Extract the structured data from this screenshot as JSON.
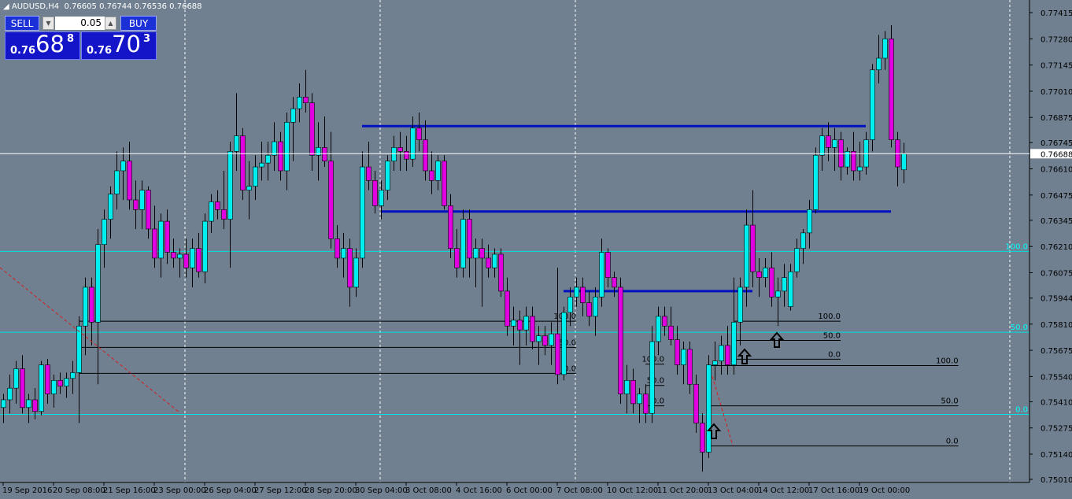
{
  "chart_data": {
    "type": "candlestick",
    "title": "AUDUSD,H4",
    "up_color": "#00f0f0",
    "down_color": "#e000e0",
    "wick_color": "#000000",
    "background": "#708090",
    "ylim": [
      0.74994,
      0.7748
    ],
    "yticks": [
      0.77415,
      {
        "value": 0.7728,
        "label": "0.77280"
      },
      0.77145,
      {
        "value": 0.7701,
        "label": "0.77010"
      },
      0.76875,
      0.76745,
      {
        "value": 0.7661,
        "label": "0.76610"
      },
      0.76475,
      0.76345,
      {
        "value": 0.7621,
        "label": "0.76210"
      },
      0.76075,
      0.75944,
      {
        "value": 0.7581,
        "label": "0.75810"
      },
      0.75675,
      {
        "value": 0.7554,
        "label": "0.75540"
      },
      {
        "value": 0.7541,
        "label": "0.75410"
      },
      0.75275,
      {
        "value": 0.7514,
        "label": "0.75140"
      },
      {
        "value": 0.7501,
        "label": "0.75010"
      }
    ],
    "xlim": [
      -0.5,
      163
    ],
    "xticks": [
      {
        "value": 0,
        "label": "19 Sep 2016"
      },
      {
        "value": 8,
        "label": "20 Sep 08:00"
      },
      {
        "value": 16,
        "label": "21 Sep 16:00"
      },
      {
        "value": 24,
        "label": "23 Sep 00:00"
      },
      {
        "value": 32,
        "label": "26 Sep 04:00"
      },
      {
        "value": 40,
        "label": "27 Sep 12:00"
      },
      {
        "value": 48,
        "label": "28 Sep 20:00"
      },
      {
        "value": 56,
        "label": "30 Sep 04:00"
      },
      {
        "value": 64,
        "label": "3 Oct 08:00"
      },
      {
        "value": 72,
        "label": "4 Oct 16:00"
      },
      {
        "value": 80,
        "label": "6 Oct 00:00"
      },
      {
        "value": 88,
        "label": "7 Oct 08:00"
      },
      {
        "value": 96,
        "label": "10 Oct 12:00"
      },
      {
        "value": 104,
        "label": "11 Oct 20:00"
      },
      {
        "value": 112,
        "label": "13 Oct 04:00"
      },
      {
        "value": 120,
        "label": "14 Oct 12:00"
      },
      {
        "value": 128,
        "label": "17 Oct 16:00"
      },
      {
        "value": 136,
        "label": "19 Oct 00:00"
      }
    ],
    "ohlc": [
      [
        0.7538,
        0.7545,
        0.753,
        0.7542
      ],
      [
        0.7542,
        0.7555,
        0.7535,
        0.7548
      ],
      [
        0.7548,
        0.7562,
        0.754,
        0.7558
      ],
      [
        0.7558,
        0.7565,
        0.7535,
        0.7538
      ],
      [
        0.7538,
        0.7545,
        0.753,
        0.7542
      ],
      [
        0.7542,
        0.7548,
        0.7532,
        0.7536
      ],
      [
        0.7536,
        0.7562,
        0.7534,
        0.756
      ],
      [
        0.756,
        0.7563,
        0.754,
        0.7545
      ],
      [
        0.7545,
        0.7555,
        0.7538,
        0.7552
      ],
      [
        0.7552,
        0.7556,
        0.7545,
        0.7549
      ],
      [
        0.7549,
        0.7556,
        0.7543,
        0.7553
      ],
      [
        0.7553,
        0.7562,
        0.7545,
        0.7556
      ],
      [
        0.7556,
        0.7585,
        0.753,
        0.758
      ],
      [
        0.758,
        0.7605,
        0.7565,
        0.76
      ],
      [
        0.76,
        0.7605,
        0.757,
        0.7582
      ],
      [
        0.7582,
        0.763,
        0.755,
        0.7622
      ],
      [
        0.7622,
        0.764,
        0.761,
        0.7635
      ],
      [
        0.7635,
        0.7652,
        0.7625,
        0.7648
      ],
      [
        0.7648,
        0.767,
        0.764,
        0.766
      ],
      [
        0.766,
        0.7672,
        0.7645,
        0.7665
      ],
      [
        0.7665,
        0.7675,
        0.764,
        0.7645
      ],
      [
        0.7645,
        0.7655,
        0.763,
        0.764
      ],
      [
        0.764,
        0.7655,
        0.763,
        0.765
      ],
      [
        0.765,
        0.7652,
        0.7625,
        0.763
      ],
      [
        0.763,
        0.7642,
        0.761,
        0.7615
      ],
      [
        0.7615,
        0.7638,
        0.7605,
        0.7634
      ],
      [
        0.7634,
        0.764,
        0.7612,
        0.7618
      ],
      [
        0.7618,
        0.7625,
        0.761,
        0.7615
      ],
      [
        0.7615,
        0.762,
        0.7605,
        0.7617
      ],
      [
        0.7617,
        0.7625,
        0.7605,
        0.761
      ],
      [
        0.761,
        0.7625,
        0.76,
        0.762
      ],
      [
        0.762,
        0.7628,
        0.7605,
        0.7608
      ],
      [
        0.7608,
        0.7638,
        0.7602,
        0.7634
      ],
      [
        0.7634,
        0.7648,
        0.7628,
        0.7644
      ],
      [
        0.7644,
        0.765,
        0.7635,
        0.764
      ],
      [
        0.764,
        0.766,
        0.763,
        0.7635
      ],
      [
        0.7635,
        0.7675,
        0.761,
        0.767
      ],
      [
        0.767,
        0.77,
        0.766,
        0.7678
      ],
      [
        0.7678,
        0.7682,
        0.7645,
        0.765
      ],
      [
        0.765,
        0.7665,
        0.7635,
        0.7652
      ],
      [
        0.7652,
        0.7668,
        0.7645,
        0.7662
      ],
      [
        0.7662,
        0.7675,
        0.7655,
        0.7664
      ],
      [
        0.7664,
        0.7675,
        0.7655,
        0.7668
      ],
      [
        0.7668,
        0.7685,
        0.766,
        0.7675
      ],
      [
        0.7675,
        0.768,
        0.7655,
        0.766
      ],
      [
        0.766,
        0.769,
        0.765,
        0.7685
      ],
      [
        0.7685,
        0.7698,
        0.7665,
        0.7692
      ],
      [
        0.7692,
        0.7705,
        0.7685,
        0.7698
      ],
      [
        0.7698,
        0.7712,
        0.769,
        0.7695
      ],
      [
        0.7695,
        0.77,
        0.766,
        0.7668
      ],
      [
        0.7668,
        0.7685,
        0.7655,
        0.7672
      ],
      [
        0.7672,
        0.7688,
        0.7662,
        0.7665
      ],
      [
        0.7665,
        0.768,
        0.762,
        0.7625
      ],
      [
        0.7625,
        0.7632,
        0.761,
        0.7615
      ],
      [
        0.7615,
        0.7628,
        0.7605,
        0.762
      ],
      [
        0.762,
        0.7625,
        0.759,
        0.76
      ],
      [
        0.76,
        0.762,
        0.7595,
        0.7615
      ],
      [
        0.7615,
        0.767,
        0.761,
        0.7662
      ],
      [
        0.7662,
        0.7675,
        0.765,
        0.7655
      ],
      [
        0.7655,
        0.766,
        0.7638,
        0.7642
      ],
      [
        0.7642,
        0.7655,
        0.7635,
        0.765
      ],
      [
        0.765,
        0.7668,
        0.7645,
        0.7665
      ],
      [
        0.7665,
        0.7678,
        0.766,
        0.7672
      ],
      [
        0.7672,
        0.768,
        0.766,
        0.767
      ],
      [
        0.767,
        0.7678,
        0.766,
        0.7666
      ],
      [
        0.7666,
        0.7688,
        0.7662,
        0.7682
      ],
      [
        0.7682,
        0.769,
        0.767,
        0.7676
      ],
      [
        0.7676,
        0.7686,
        0.7655,
        0.766
      ],
      [
        0.766,
        0.767,
        0.7648,
        0.7655
      ],
      [
        0.7655,
        0.7668,
        0.765,
        0.7665
      ],
      [
        0.7665,
        0.7668,
        0.764,
        0.7642
      ],
      [
        0.7642,
        0.7648,
        0.7615,
        0.762
      ],
      [
        0.762,
        0.763,
        0.7605,
        0.761
      ],
      [
        0.761,
        0.764,
        0.7605,
        0.7635
      ],
      [
        0.7635,
        0.764,
        0.7605,
        0.7615
      ],
      [
        0.7615,
        0.7625,
        0.76,
        0.762
      ],
      [
        0.762,
        0.7625,
        0.759,
        0.7615
      ],
      [
        0.7615,
        0.7622,
        0.7605,
        0.761
      ],
      [
        0.761,
        0.762,
        0.7605,
        0.7617
      ],
      [
        0.7617,
        0.762,
        0.7595,
        0.7598
      ],
      [
        0.7598,
        0.7605,
        0.7575,
        0.758
      ],
      [
        0.758,
        0.759,
        0.757,
        0.7583
      ],
      [
        0.7583,
        0.7588,
        0.756,
        0.7578
      ],
      [
        0.7578,
        0.759,
        0.757,
        0.7585
      ],
      [
        0.7585,
        0.759,
        0.7568,
        0.7572
      ],
      [
        0.7572,
        0.758,
        0.756,
        0.7575
      ],
      [
        0.7575,
        0.758,
        0.7565,
        0.757
      ],
      [
        0.757,
        0.7582,
        0.756,
        0.7576
      ],
      [
        0.7576,
        0.761,
        0.755,
        0.7555
      ],
      [
        0.7555,
        0.759,
        0.7552,
        0.7587
      ],
      [
        0.7587,
        0.76,
        0.758,
        0.7595
      ],
      [
        0.7595,
        0.7605,
        0.759,
        0.76
      ],
      [
        0.76,
        0.7605,
        0.7585,
        0.7592
      ],
      [
        0.7592,
        0.7598,
        0.758,
        0.7585
      ],
      [
        0.7585,
        0.76,
        0.7575,
        0.7595
      ],
      [
        0.7595,
        0.7625,
        0.759,
        0.7618
      ],
      [
        0.7618,
        0.762,
        0.76,
        0.7605
      ],
      [
        0.7605,
        0.7608,
        0.7595,
        0.76
      ],
      [
        0.76,
        0.7605,
        0.754,
        0.7545
      ],
      [
        0.7545,
        0.756,
        0.7535,
        0.7552
      ],
      [
        0.7552,
        0.7558,
        0.7535,
        0.754
      ],
      [
        0.754,
        0.7548,
        0.753,
        0.7545
      ],
      [
        0.7545,
        0.755,
        0.753,
        0.7535
      ],
      [
        0.7535,
        0.758,
        0.753,
        0.7572
      ],
      [
        0.7572,
        0.759,
        0.7565,
        0.7585
      ],
      [
        0.7585,
        0.759,
        0.7575,
        0.758
      ],
      [
        0.758,
        0.759,
        0.757,
        0.7573
      ],
      [
        0.7573,
        0.758,
        0.7555,
        0.756
      ],
      [
        0.756,
        0.7572,
        0.755,
        0.7568
      ],
      [
        0.7568,
        0.7572,
        0.7545,
        0.755
      ],
      [
        0.755,
        0.7555,
        0.7525,
        0.753
      ],
      [
        0.753,
        0.7535,
        0.7505,
        0.7515
      ],
      [
        0.7515,
        0.7565,
        0.7512,
        0.756
      ],
      [
        0.756,
        0.7572,
        0.7552,
        0.7562
      ],
      [
        0.7562,
        0.7575,
        0.7555,
        0.757
      ],
      [
        0.757,
        0.758,
        0.7555,
        0.756
      ],
      [
        0.756,
        0.7605,
        0.7555,
        0.7582
      ],
      [
        0.7582,
        0.7605,
        0.757,
        0.76
      ],
      [
        0.76,
        0.764,
        0.759,
        0.7632
      ],
      [
        0.7632,
        0.765,
        0.76,
        0.7608
      ],
      [
        0.7608,
        0.7615,
        0.7595,
        0.7605
      ],
      [
        0.7605,
        0.7615,
        0.76,
        0.761
      ],
      [
        0.761,
        0.7618,
        0.759,
        0.7595
      ],
      [
        0.7595,
        0.7605,
        0.758,
        0.7598
      ],
      [
        0.7598,
        0.7612,
        0.759,
        0.7605
      ],
      [
        0.759,
        0.7612,
        0.7588,
        0.7608
      ],
      [
        0.7608,
        0.7625,
        0.7605,
        0.762
      ],
      [
        0.762,
        0.763,
        0.7612,
        0.7628
      ],
      [
        0.7628,
        0.7645,
        0.762,
        0.764
      ],
      [
        0.764,
        0.7672,
        0.7638,
        0.7668
      ],
      [
        0.7668,
        0.7682,
        0.766,
        0.7678
      ],
      [
        0.7678,
        0.7685,
        0.7665,
        0.7672
      ],
      [
        0.7672,
        0.7682,
        0.766,
        0.7676
      ],
      [
        0.7676,
        0.768,
        0.7655,
        0.7662
      ],
      [
        0.7662,
        0.7672,
        0.7658,
        0.767
      ],
      [
        0.767,
        0.768,
        0.7655,
        0.766
      ],
      [
        0.766,
        0.7675,
        0.7655,
        0.7662
      ],
      [
        0.7662,
        0.768,
        0.7658,
        0.7676
      ],
      [
        0.7676,
        0.7715,
        0.767,
        0.7712
      ],
      [
        0.7712,
        0.773,
        0.7705,
        0.7718
      ],
      [
        0.7718,
        0.7732,
        0.7712,
        0.7728
      ],
      [
        0.7728,
        0.7735,
        0.7672,
        0.7676
      ],
      [
        0.7676,
        0.768,
        0.7652,
        0.7662
      ],
      [
        0.76605,
        0.76744,
        0.76536,
        0.76688
      ]
    ],
    "trend_lines": [
      {
        "price": 0.7683,
        "from": 57,
        "to": 137
      },
      {
        "price": 0.7639,
        "from": 60,
        "to": 141
      },
      {
        "price": 0.7598,
        "from": 89,
        "to": 119
      }
    ],
    "fib_levels": [
      {
        "label": "100.0",
        "price": 0.76185
      },
      {
        "label": "50.0",
        "price": 0.75768
      },
      {
        "label": "0.0",
        "price": 0.75345
      }
    ],
    "fib_sets": [
      {
        "from": 12,
        "to": 91,
        "levels": [
          {
            "label": "100.0",
            "price": 0.75825
          },
          {
            "label": "50.0",
            "price": 0.7569
          },
          {
            "label": "0.0",
            "price": 0.75556
          }
        ]
      },
      {
        "from": 102,
        "to": 105,
        "levels": [
          {
            "label": "100.0",
            "price": 0.75604
          },
          {
            "label": "50.0",
            "price": 0.75494
          },
          {
            "label": "0.0",
            "price": 0.75389
          }
        ]
      },
      {
        "from": 116,
        "to": 133,
        "levels": [
          {
            "label": "100.0",
            "price": 0.75825
          },
          {
            "label": "50.0",
            "price": 0.75726
          },
          {
            "label": "0.0",
            "price": 0.75629
          }
        ]
      },
      {
        "from": 112,
        "to": 151.7,
        "levels": [
          {
            "label": "100.0",
            "price": 0.75596
          },
          {
            "label": "50.0",
            "price": 0.75389
          },
          {
            "label": "0.0",
            "price": 0.75182
          }
        ]
      }
    ]
  },
  "trade_panel": {
    "sell_label": "SELL",
    "buy_label": "BUY",
    "lot": "0.05",
    "sell_price": {
      "prefix": "0.76",
      "main": "68",
      "sup": "8"
    },
    "buy_price": {
      "prefix": "0.76",
      "main": "70",
      "sup": "3"
    }
  }
}
